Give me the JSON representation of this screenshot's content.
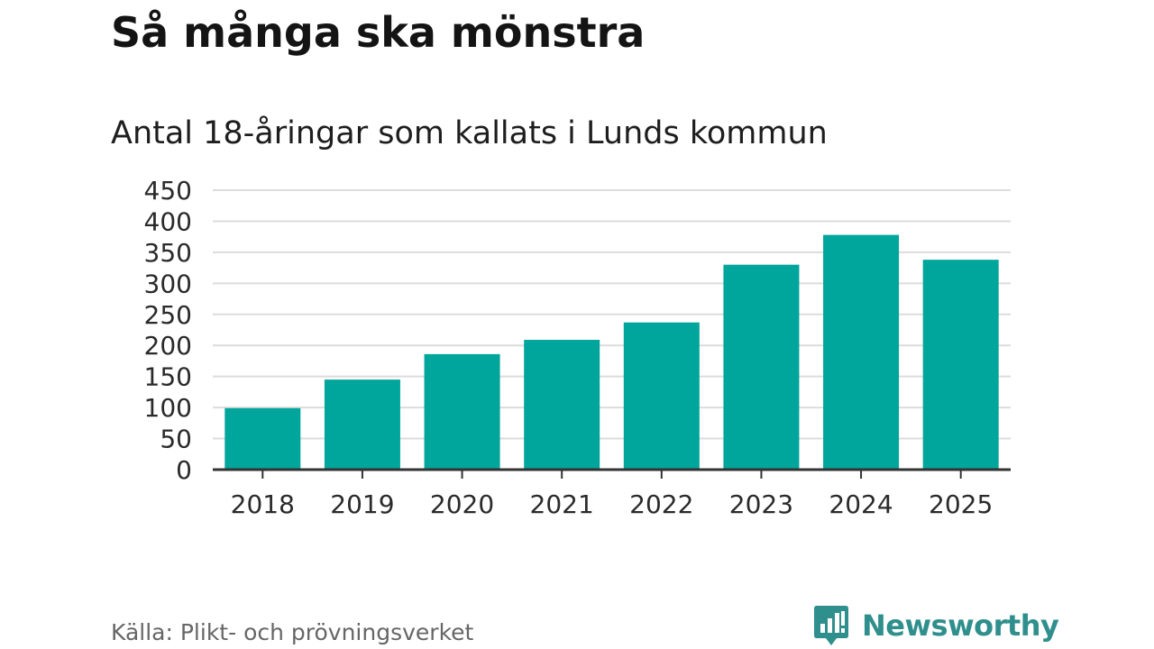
{
  "title": "Så många ska mönstra",
  "subtitle": "Antal 18-åringar som kallats i Lunds kommun",
  "source": "Källa: Plikt- och prövningsverket",
  "logo": {
    "text": "Newsworthy",
    "icon": "newsworthy-logo-icon",
    "color": "#2f8f8c"
  },
  "colors": {
    "bar": "#00a59b",
    "grid": "#dcdcdc",
    "axis": "#333333"
  },
  "chart_data": {
    "type": "bar",
    "categories": [
      "2018",
      "2019",
      "2020",
      "2021",
      "2022",
      "2023",
      "2024",
      "2025"
    ],
    "values": [
      99,
      145,
      186,
      209,
      237,
      330,
      378,
      338
    ],
    "title": "Så många ska mönstra",
    "subtitle": "Antal 18-åringar som kallats i Lunds kommun",
    "ylim": [
      0,
      450
    ],
    "yticks": [
      0,
      50,
      100,
      150,
      200,
      250,
      300,
      350,
      400,
      450
    ],
    "grid": true,
    "legend": "none"
  }
}
